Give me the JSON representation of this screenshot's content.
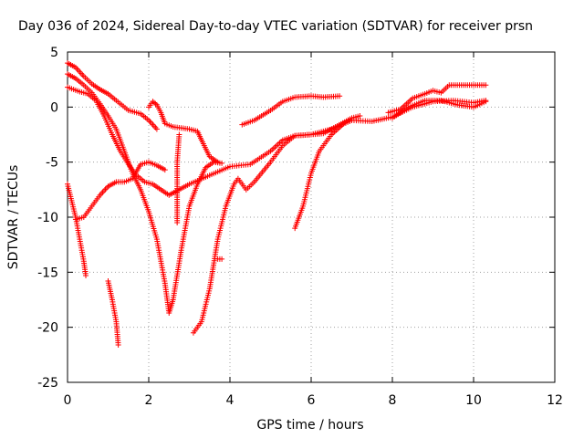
{
  "chart_data": {
    "type": "scatter",
    "title": "Day 036 of 2024, Sidereal Day-to-day VTEC variation (SDTVAR) for receiver prsn",
    "xlabel": "GPS time / hours",
    "ylabel": "SDTVAR / TECUs",
    "xlim": [
      0,
      12
    ],
    "ylim": [
      -25,
      5
    ],
    "x_ticks": [
      0,
      2,
      4,
      6,
      8,
      10,
      12
    ],
    "y_ticks": [
      5,
      0,
      -5,
      -10,
      -15,
      -20,
      -25
    ],
    "grid": true,
    "legend": "none",
    "marker": "+",
    "color": "#ff0000",
    "series": [
      {
        "points": [
          [
            0.0,
            4.0
          ],
          [
            0.2,
            3.6
          ],
          [
            0.4,
            2.8
          ],
          [
            0.6,
            2.1
          ],
          [
            0.8,
            1.6
          ],
          [
            1.0,
            1.2
          ],
          [
            1.2,
            0.6
          ],
          [
            1.5,
            -0.3
          ],
          [
            1.8,
            -0.6
          ],
          [
            2.0,
            -1.2
          ],
          [
            2.2,
            -2.0
          ]
        ]
      },
      {
        "points": [
          [
            0.0,
            3.0
          ],
          [
            0.2,
            2.6
          ],
          [
            0.4,
            2.0
          ],
          [
            0.6,
            1.3
          ],
          [
            0.8,
            0.3
          ],
          [
            1.0,
            -0.8
          ],
          [
            1.2,
            -2.0
          ],
          [
            1.4,
            -4.0
          ],
          [
            1.6,
            -6.0
          ],
          [
            1.8,
            -7.5
          ],
          [
            2.0,
            -9.5
          ],
          [
            2.2,
            -12.0
          ],
          [
            2.4,
            -16.0
          ],
          [
            2.5,
            -18.7
          ],
          [
            2.6,
            -17.5
          ],
          [
            2.8,
            -13.0
          ],
          [
            3.0,
            -9.0
          ],
          [
            3.2,
            -7.0
          ],
          [
            3.4,
            -5.5
          ],
          [
            3.6,
            -5.0
          ],
          [
            3.8,
            -5.1
          ]
        ]
      },
      {
        "points": [
          [
            0.0,
            1.8
          ],
          [
            0.3,
            1.4
          ],
          [
            0.5,
            1.2
          ],
          [
            0.7,
            0.6
          ],
          [
            0.9,
            -0.8
          ],
          [
            1.1,
            -2.5
          ],
          [
            1.3,
            -4.0
          ],
          [
            1.5,
            -5.2
          ],
          [
            1.7,
            -6.2
          ],
          [
            1.9,
            -6.8
          ],
          [
            2.1,
            -7.0
          ],
          [
            2.3,
            -7.5
          ],
          [
            2.5,
            -8.0
          ],
          [
            2.7,
            -7.6
          ],
          [
            3.0,
            -7.0
          ],
          [
            3.5,
            -6.2
          ],
          [
            4.0,
            -5.4
          ],
          [
            4.5,
            -5.2
          ],
          [
            5.0,
            -4.0
          ],
          [
            5.3,
            -3.0
          ],
          [
            5.6,
            -2.6
          ],
          [
            6.0,
            -2.5
          ],
          [
            6.5,
            -2.0
          ],
          [
            7.0,
            -1.2
          ],
          [
            7.5,
            -1.3
          ],
          [
            8.0,
            -0.9
          ],
          [
            8.5,
            0.0
          ],
          [
            9.0,
            0.5
          ],
          [
            9.5,
            0.6
          ],
          [
            10.0,
            0.4
          ],
          [
            10.3,
            0.6
          ]
        ]
      },
      {
        "points": [
          [
            0.0,
            -7.0
          ],
          [
            0.1,
            -8.5
          ],
          [
            0.2,
            -10.0
          ],
          [
            0.3,
            -12.0
          ],
          [
            0.4,
            -14.0
          ],
          [
            0.45,
            -15.3
          ]
        ]
      },
      {
        "points": [
          [
            0.2,
            -10.2
          ],
          [
            0.4,
            -10.0
          ],
          [
            0.6,
            -9.0
          ],
          [
            0.8,
            -8.0
          ],
          [
            1.0,
            -7.2
          ],
          [
            1.2,
            -6.8
          ],
          [
            1.4,
            -6.8
          ],
          [
            1.6,
            -6.5
          ],
          [
            1.8,
            -5.2
          ],
          [
            2.0,
            -5.0
          ],
          [
            2.2,
            -5.3
          ],
          [
            2.4,
            -5.7
          ]
        ]
      },
      {
        "points": [
          [
            1.0,
            -15.8
          ],
          [
            1.1,
            -17.5
          ],
          [
            1.2,
            -19.5
          ],
          [
            1.25,
            -21.6
          ]
        ]
      },
      {
        "points": [
          [
            2.0,
            0.0
          ],
          [
            2.1,
            0.5
          ],
          [
            2.2,
            0.2
          ],
          [
            2.3,
            -0.5
          ],
          [
            2.4,
            -1.5
          ],
          [
            2.6,
            -1.8
          ],
          [
            2.8,
            -1.9
          ],
          [
            3.0,
            -2.0
          ],
          [
            3.2,
            -2.2
          ],
          [
            3.3,
            -3.0
          ],
          [
            3.5,
            -4.5
          ],
          [
            3.7,
            -5.0
          ]
        ]
      },
      {
        "points": [
          [
            2.75,
            -2.5
          ],
          [
            2.7,
            -5.0
          ],
          [
            2.7,
            -8.0
          ],
          [
            2.7,
            -10.5
          ]
        ]
      },
      {
        "points": [
          [
            3.1,
            -20.5
          ],
          [
            3.3,
            -19.5
          ],
          [
            3.5,
            -16.5
          ],
          [
            3.7,
            -12.0
          ],
          [
            3.9,
            -9.0
          ],
          [
            4.1,
            -7.0
          ],
          [
            4.2,
            -6.5
          ],
          [
            4.4,
            -7.5
          ],
          [
            4.6,
            -6.8
          ],
          [
            5.0,
            -5.0
          ],
          [
            5.3,
            -3.5
          ],
          [
            5.6,
            -2.6
          ],
          [
            6.0,
            -2.5
          ],
          [
            6.3,
            -2.4
          ],
          [
            6.6,
            -1.8
          ],
          [
            7.0,
            -1.0
          ],
          [
            7.2,
            -0.8
          ]
        ]
      },
      {
        "points": [
          [
            3.7,
            -13.8
          ],
          [
            3.8,
            -13.8
          ]
        ]
      },
      {
        "points": [
          [
            4.3,
            -1.6
          ],
          [
            4.6,
            -1.2
          ],
          [
            5.0,
            -0.3
          ],
          [
            5.3,
            0.5
          ],
          [
            5.6,
            0.9
          ],
          [
            6.0,
            1.0
          ],
          [
            6.3,
            0.9
          ],
          [
            6.7,
            1.0
          ]
        ]
      },
      {
        "points": [
          [
            5.6,
            -11.0
          ],
          [
            5.8,
            -9.0
          ],
          [
            6.0,
            -6.0
          ],
          [
            6.2,
            -4.0
          ],
          [
            6.5,
            -2.5
          ],
          [
            6.8,
            -1.5
          ],
          [
            7.0,
            -1.2
          ]
        ]
      },
      {
        "points": [
          [
            7.9,
            -0.5
          ],
          [
            8.2,
            -0.2
          ],
          [
            8.5,
            0.8
          ],
          [
            8.8,
            1.2
          ],
          [
            9.0,
            1.5
          ],
          [
            9.2,
            1.3
          ],
          [
            9.4,
            2.0
          ],
          [
            9.7,
            2.0
          ],
          [
            10.0,
            2.0
          ],
          [
            10.3,
            2.0
          ]
        ]
      },
      {
        "points": [
          [
            8.0,
            -1.0
          ],
          [
            8.4,
            0.0
          ],
          [
            8.8,
            0.6
          ],
          [
            9.2,
            0.6
          ],
          [
            9.6,
            0.2
          ],
          [
            10.0,
            0.0
          ],
          [
            10.3,
            0.5
          ]
        ]
      }
    ]
  }
}
